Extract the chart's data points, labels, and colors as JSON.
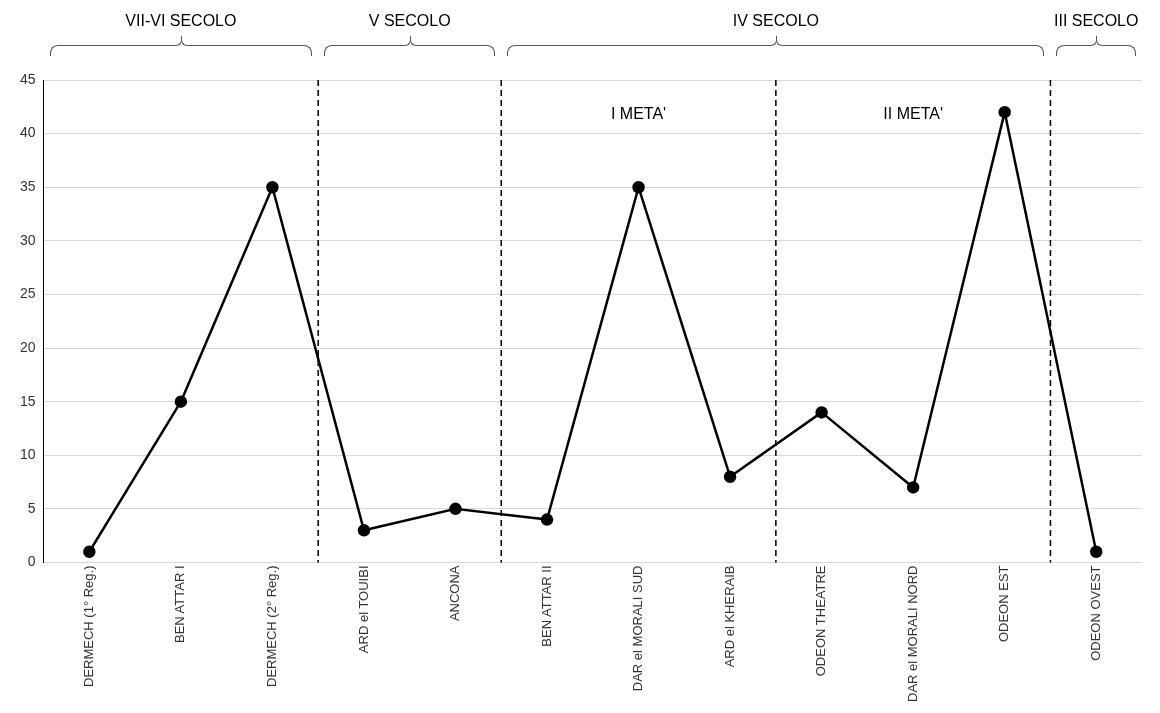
{
  "chart_data": {
    "type": "line",
    "categories": [
      "DERMECH (1° Reg.)",
      "BEN ATTAR I",
      "DERMECH (2° Reg.)",
      "ARD el TOUIBI",
      "ANCONA",
      "BEN ATTAR II",
      "DAR el MORALI SUD",
      "ARD el KHERAIB",
      "ODEON THEATRE",
      "DAR el MORALI NORD",
      "ODEON EST",
      "ODEON OVEST"
    ],
    "series": [
      {
        "color": "#000000",
        "values": [
          1,
          15,
          35,
          3,
          5,
          4,
          35,
          8,
          14,
          7,
          42,
          1
        ]
      }
    ],
    "ylim": [
      0,
      45
    ],
    "yticks": [
      0,
      5,
      10,
      15,
      20,
      25,
      30,
      35,
      40,
      45
    ],
    "grid": "y",
    "marker": "circle",
    "line_style": "solid",
    "legend": false,
    "annotations": [
      "VII-VI SECOLO",
      "V SECOLO",
      "IV SECOLO",
      "III SECOLO",
      "I META'",
      "II META'"
    ]
  }
}
